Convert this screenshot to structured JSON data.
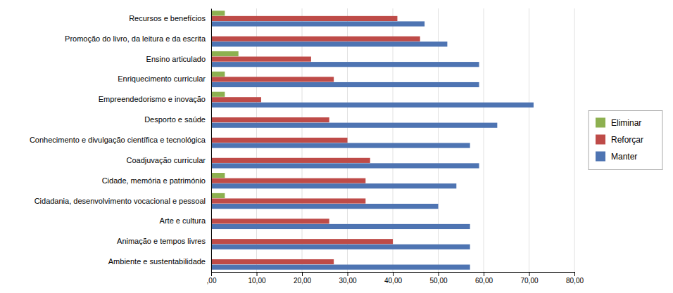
{
  "chart_data": {
    "type": "bar",
    "orientation": "horizontal",
    "categories": [
      "Recursos e benefícios",
      "Promoção do livro, da leitura e da escrita",
      "Ensino articulado",
      "Enriquecimento curricular",
      "Empreendedorismo e inovação",
      "Desporto e saúde",
      "Conhecimento e divulgação científica e tecnológica",
      "Coadjuvação curricular",
      "Cidade, memória e património",
      "Cidadania, desenvolvimento vocacional e pessoal",
      "Arte e cultura",
      "Animação e tempos livres",
      "Ambiente e sustentabilidade"
    ],
    "series": [
      {
        "name": "Eliminar",
        "color": "#8db050",
        "values": [
          3.0,
          0.0,
          6.0,
          3.0,
          3.0,
          0.0,
          0.0,
          0.0,
          3.0,
          3.0,
          0.0,
          0.0,
          0.0
        ]
      },
      {
        "name": "Reforçar",
        "color": "#be4b48",
        "values": [
          41.0,
          46.0,
          22.0,
          27.0,
          11.0,
          26.0,
          30.0,
          35.0,
          34.0,
          34.0,
          26.0,
          40.0,
          27.0
        ]
      },
      {
        "name": "Manter",
        "color": "#4e74b2",
        "values": [
          47.0,
          52.0,
          59.0,
          59.0,
          71.0,
          63.0,
          57.0,
          59.0,
          54.0,
          50.0,
          57.0,
          57.0,
          57.0
        ]
      }
    ],
    "xlim": [
      0,
      80
    ],
    "xticks": [
      {
        "value": 0,
        "label": ",00"
      },
      {
        "value": 10,
        "label": "10,00"
      },
      {
        "value": 20,
        "label": "20,00"
      },
      {
        "value": 30,
        "label": "30,00"
      },
      {
        "value": 40,
        "label": "40,00"
      },
      {
        "value": 50,
        "label": "50,00"
      },
      {
        "value": 60,
        "label": "60,00"
      },
      {
        "value": 70,
        "label": "70,00"
      },
      {
        "value": 80,
        "label": "80,00"
      }
    ],
    "grid": true,
    "legend": "right"
  }
}
